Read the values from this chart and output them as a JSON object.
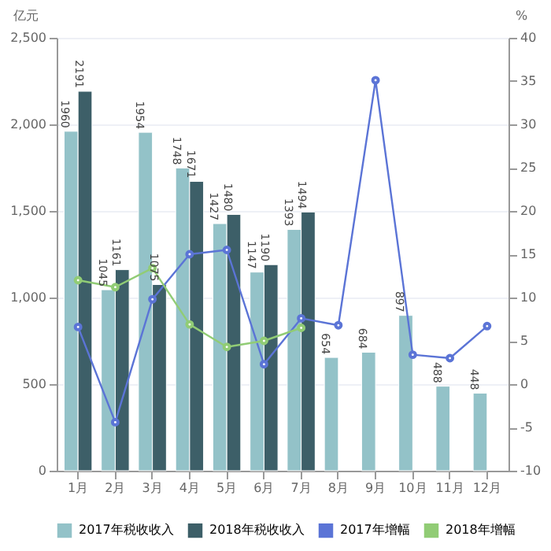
{
  "chart_data": {
    "type": "bar",
    "ylabel": "亿元",
    "y2label": "%",
    "categories": [
      "1月",
      "2月",
      "3月",
      "4月",
      "5月",
      "6月",
      "7月",
      "8月",
      "9月",
      "10月",
      "11月",
      "12月"
    ],
    "series": [
      {
        "name": "2017年税收收入",
        "color": "#93c2c8",
        "values": [
          1960,
          1045,
          1954,
          1748,
          1427,
          1147,
          1393,
          654,
          684,
          897,
          488,
          448
        ],
        "value_labels": [
          "1960",
          "1045",
          "1954",
          "1748",
          "1427",
          "1147",
          "1393",
          "654",
          "684",
          "897",
          "488",
          "448"
        ]
      },
      {
        "name": "2018年税收收入",
        "color": "#3d5f68",
        "values": [
          2191,
          1161,
          1075,
          1671,
          1480,
          1190,
          1494,
          null,
          null,
          null,
          null,
          null
        ],
        "value_labels": [
          "2191",
          "1161",
          "1075",
          "1671",
          "1480",
          "1190",
          "1494",
          null,
          null,
          null,
          null,
          null
        ]
      },
      {
        "name": "2017年增幅",
        "type": "line",
        "axis": "y2",
        "color": "#5b74d6",
        "values": [
          6.6,
          -4.4,
          9.8,
          15.0,
          15.5,
          2.3,
          7.6,
          6.8,
          35.1,
          3.4,
          3.0,
          6.7
        ]
      },
      {
        "name": "2018年增幅",
        "type": "line",
        "axis": "y2",
        "color": "#91cc75",
        "values": [
          12.0,
          11.2,
          13.4,
          6.9,
          4.3,
          5.0,
          6.5,
          null,
          null,
          null,
          null,
          null
        ]
      }
    ],
    "ylim": [
      0,
      2500
    ],
    "yticks": [
      0,
      {
        "value": 500,
        "label": "500"
      },
      {
        "value": 1000,
        "label": "1,000"
      },
      {
        "value": 1500,
        "label": "1,500"
      },
      {
        "value": 2000,
        "label": "2,000"
      },
      {
        "value": 2500,
        "label": "2,500"
      }
    ],
    "y2lim": [
      -10,
      40
    ],
    "y2ticks": [
      -10,
      -5,
      0,
      5,
      10,
      15,
      20,
      25,
      30,
      35,
      40
    ],
    "grid": "y",
    "legend": "bottom",
    "marker": "circle"
  }
}
